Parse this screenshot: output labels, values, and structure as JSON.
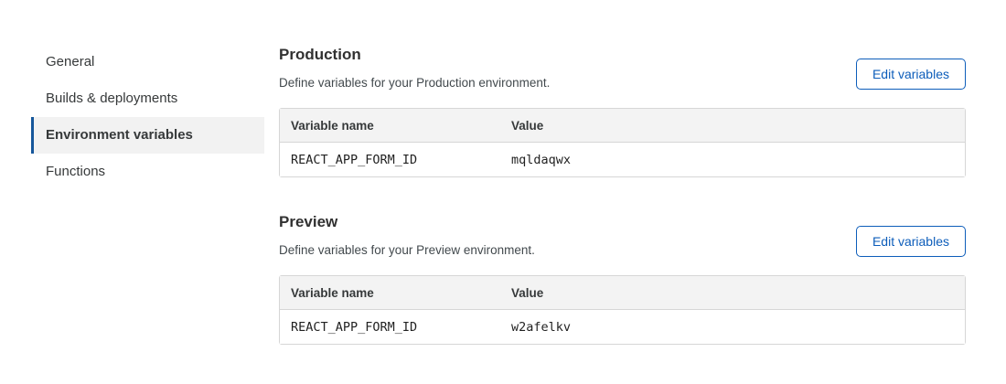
{
  "colors": {
    "accent_blue": "#0d5dba",
    "nav_indicator_blue": "#16579b",
    "nav_active_bg": "#f2f2f2",
    "table_header_bg": "#f3f3f3",
    "table_border": "#d6d6d6",
    "text_primary": "#313131",
    "text_secondary": "#42494d"
  },
  "sidebar": {
    "items": [
      {
        "label": "General",
        "active": false
      },
      {
        "label": "Builds & deployments",
        "active": false
      },
      {
        "label": "Environment variables",
        "active": true
      },
      {
        "label": "Functions",
        "active": false
      }
    ]
  },
  "sections": [
    {
      "title": "Production",
      "description": "Define variables for your Production environment.",
      "button_label": "Edit variables",
      "table": {
        "columns": [
          "Variable name",
          "Value"
        ],
        "rows": [
          {
            "name": "REACT_APP_FORM_ID",
            "value": "mqldaqwx"
          }
        ]
      }
    },
    {
      "title": "Preview",
      "description": "Define variables for your Preview environment.",
      "button_label": "Edit variables",
      "table": {
        "columns": [
          "Variable name",
          "Value"
        ],
        "rows": [
          {
            "name": "REACT_APP_FORM_ID",
            "value": "w2afelkv"
          }
        ]
      }
    }
  ]
}
